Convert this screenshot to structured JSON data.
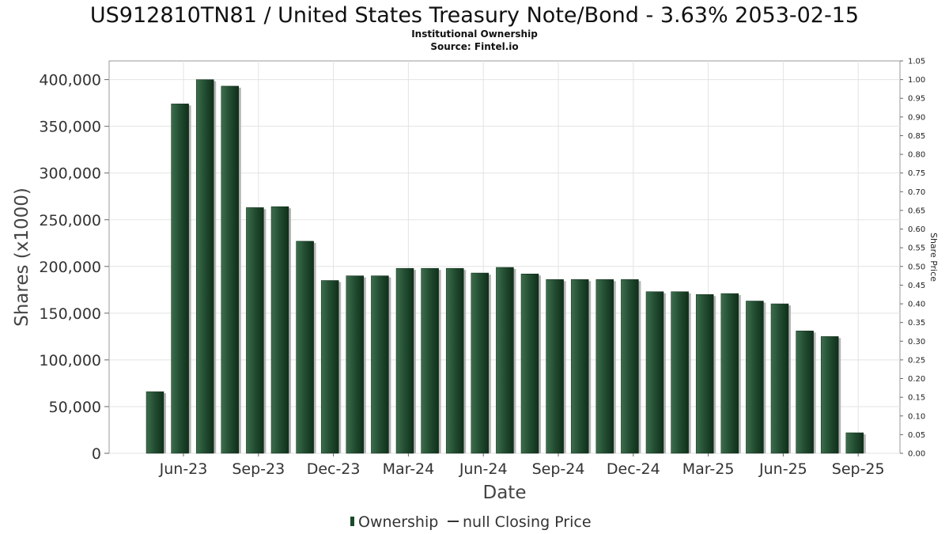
{
  "chart_data": {
    "type": "bar",
    "title": "US912810TN81 / United States Treasury Note/Bond - 3.63% 2053-02-15",
    "subtitle": "Institutional Ownership",
    "source": "Source: Fintel.io",
    "xlabel": "Date",
    "ylabel": "Shares (x1000)",
    "y2label": "Share Price",
    "ylim": [
      0,
      420000
    ],
    "y2lim": [
      0,
      1.05
    ],
    "yticks": [
      "0",
      "50,000",
      "100,000",
      "150,000",
      "200,000",
      "250,000",
      "300,000",
      "350,000",
      "400,000"
    ],
    "y2ticks": [
      "0.00",
      "0.05",
      "0.10",
      "0.15",
      "0.20",
      "0.25",
      "0.30",
      "0.35",
      "0.40",
      "0.45",
      "0.50",
      "0.55",
      "0.60",
      "0.65",
      "0.70",
      "0.75",
      "0.80",
      "0.85",
      "0.90",
      "0.95",
      "1.00",
      "1.05"
    ],
    "xticks": [
      "Jun-23",
      "Sep-23",
      "Dec-23",
      "Mar-24",
      "Jun-24",
      "Sep-24",
      "Dec-24",
      "Mar-25",
      "Jun-25",
      "Sep-25"
    ],
    "grid": true,
    "legend_position": "bottom",
    "series": [
      {
        "name": "Ownership",
        "color": "#1a4a2a",
        "values": [
          66000,
          374000,
          400000,
          393000,
          263000,
          264000,
          227000,
          185000,
          190000,
          190000,
          198000,
          198000,
          198000,
          193000,
          199000,
          192000,
          186000,
          186000,
          186000,
          186000,
          173000,
          173000,
          170000,
          171000,
          163000,
          160000,
          131000,
          125000,
          22000
        ]
      }
    ],
    "legend": [
      {
        "label": "Ownership",
        "marker": "bar",
        "color": "#1a4a2a"
      },
      {
        "label": "null Closing Price",
        "marker": "line",
        "color": "#333333"
      }
    ]
  }
}
